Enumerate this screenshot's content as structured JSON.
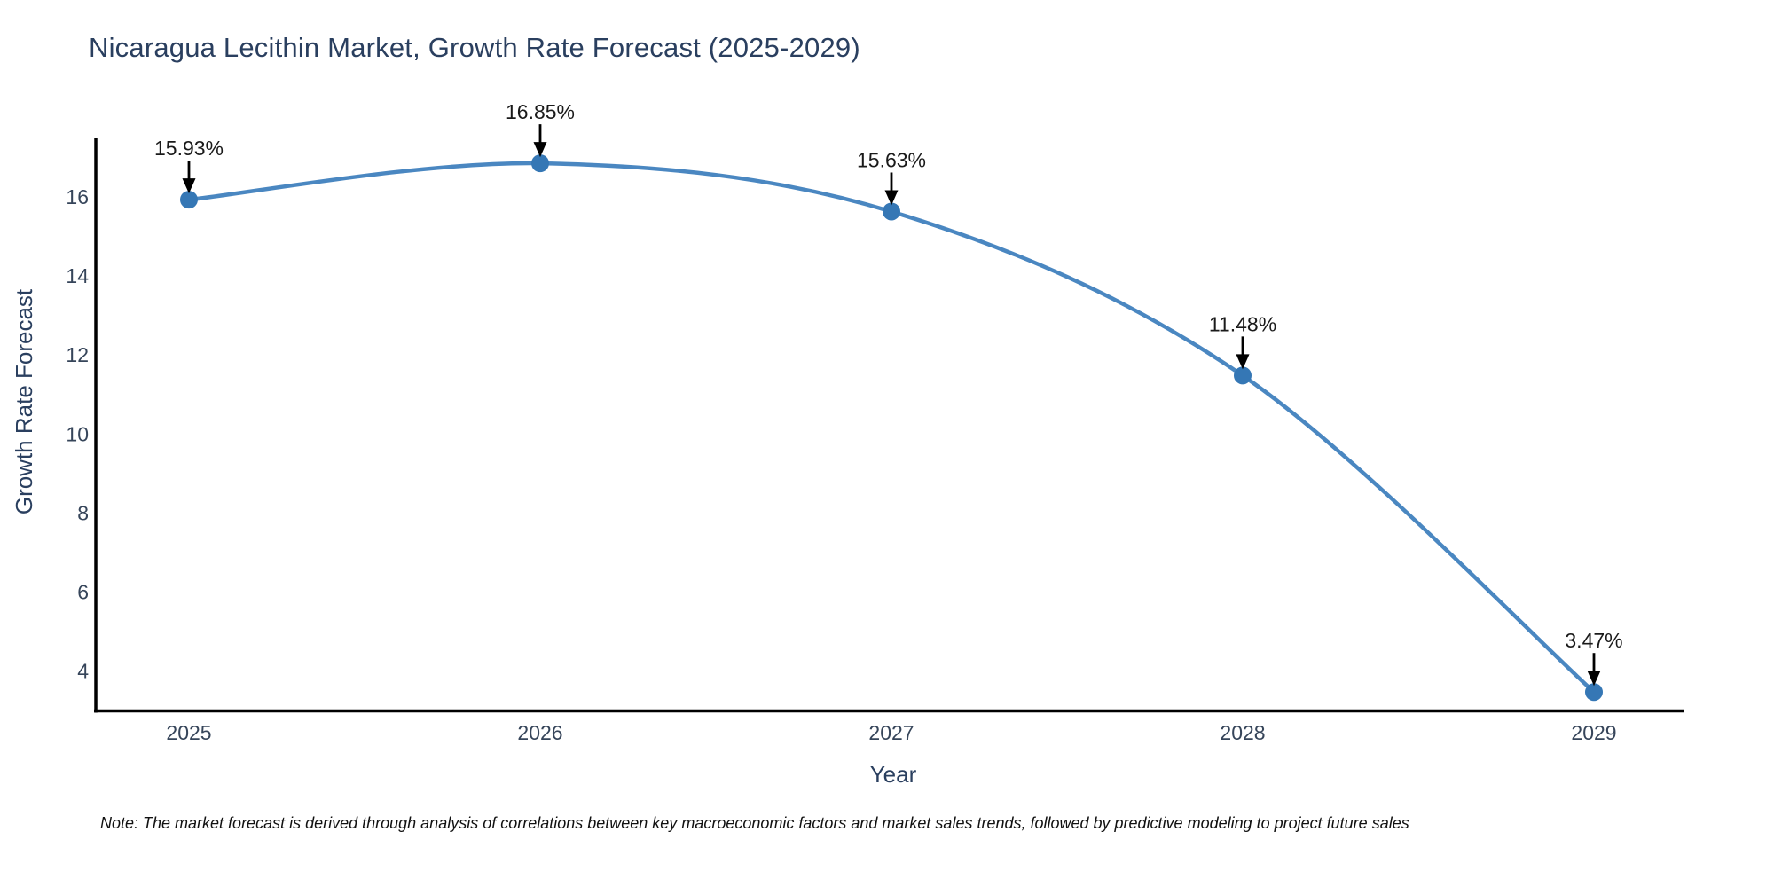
{
  "title": "Nicaragua Lecithin Market, Growth Rate Forecast (2025-2029)",
  "note": "Note: The market forecast is derived through analysis of correlations between key macroeconomic factors and market sales trends, followed by predictive modeling to project future sales",
  "chart_data": {
    "type": "line",
    "title": "Nicaragua Lecithin Market, Growth Rate Forecast (2025-2029)",
    "xlabel": "Year",
    "ylabel": "Growth Rate Forecast",
    "categories": [
      "2025",
      "2026",
      "2027",
      "2028",
      "2029"
    ],
    "series": [
      {
        "name": "Growth Rate Forecast",
        "values": [
          15.93,
          16.85,
          15.63,
          11.48,
          3.47
        ]
      }
    ],
    "point_labels": [
      "15.93%",
      "16.85%",
      "15.63%",
      "11.48%",
      "3.47%"
    ],
    "y_ticks": [
      4,
      6,
      8,
      10,
      12,
      14,
      16
    ],
    "ylim": [
      3.0,
      17.5
    ],
    "line_shape": "spline",
    "grid": false,
    "legend_position": "none",
    "colors": {
      "line": "#4a87c1",
      "marker": "#3577b5",
      "axis_line": "#000000",
      "title_text": "#2a3f5f",
      "axis_title_text": "#2a3f5f",
      "tick_text": "#36455a",
      "annotation_text": "#1a1a1a",
      "annotation_arrow": "#000000",
      "background": "#ffffff"
    }
  }
}
